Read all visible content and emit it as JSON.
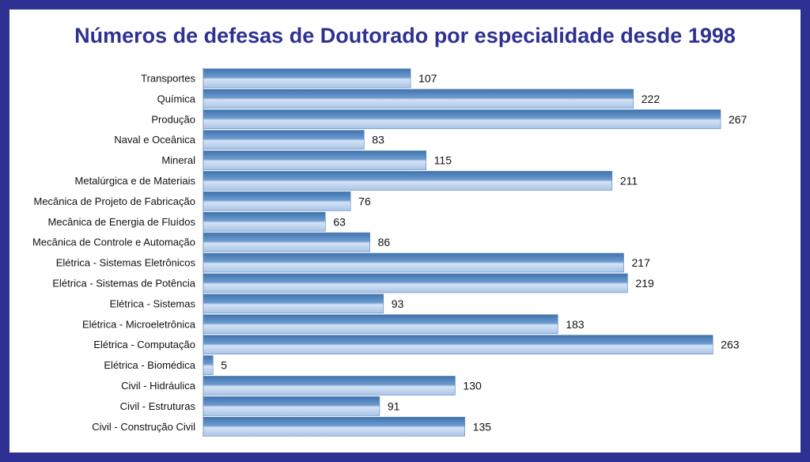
{
  "chart_data": {
    "type": "bar",
    "orientation": "horizontal",
    "title": "Números de defesas de Doutorado por especialidade desde 1998",
    "categories": [
      "Transportes",
      "Química",
      "Produção",
      "Naval e Oceânica",
      "Mineral",
      "Metalúrgica e de Materiais",
      "Mecânica de Projeto de Fabricação",
      "Mecânica de Energia de Fluídos",
      "Mecânica de Controle e Automação",
      "Elétrica - Sistemas Eletrônicos",
      "Elétrica - Sistemas de Potência",
      "Elétrica - Sistemas",
      "Elétrica - Microeletrônica",
      "Elétrica - Computação",
      "Elétrica - Biomédica",
      "Civil - Hidráulica",
      "Civil - Estruturas",
      "Civil - Construção Civil"
    ],
    "values": [
      107,
      222,
      267,
      83,
      115,
      211,
      76,
      63,
      86,
      217,
      219,
      93,
      183,
      263,
      5,
      130,
      91,
      135
    ],
    "xlim": [
      0,
      267
    ],
    "grid": false,
    "legend": "none",
    "data_labels": true
  },
  "colors": {
    "frame": "#2e3192",
    "title": "#2e3192",
    "bar_top": "#4f81bd",
    "bar_bottom": "#c6d9f1"
  }
}
